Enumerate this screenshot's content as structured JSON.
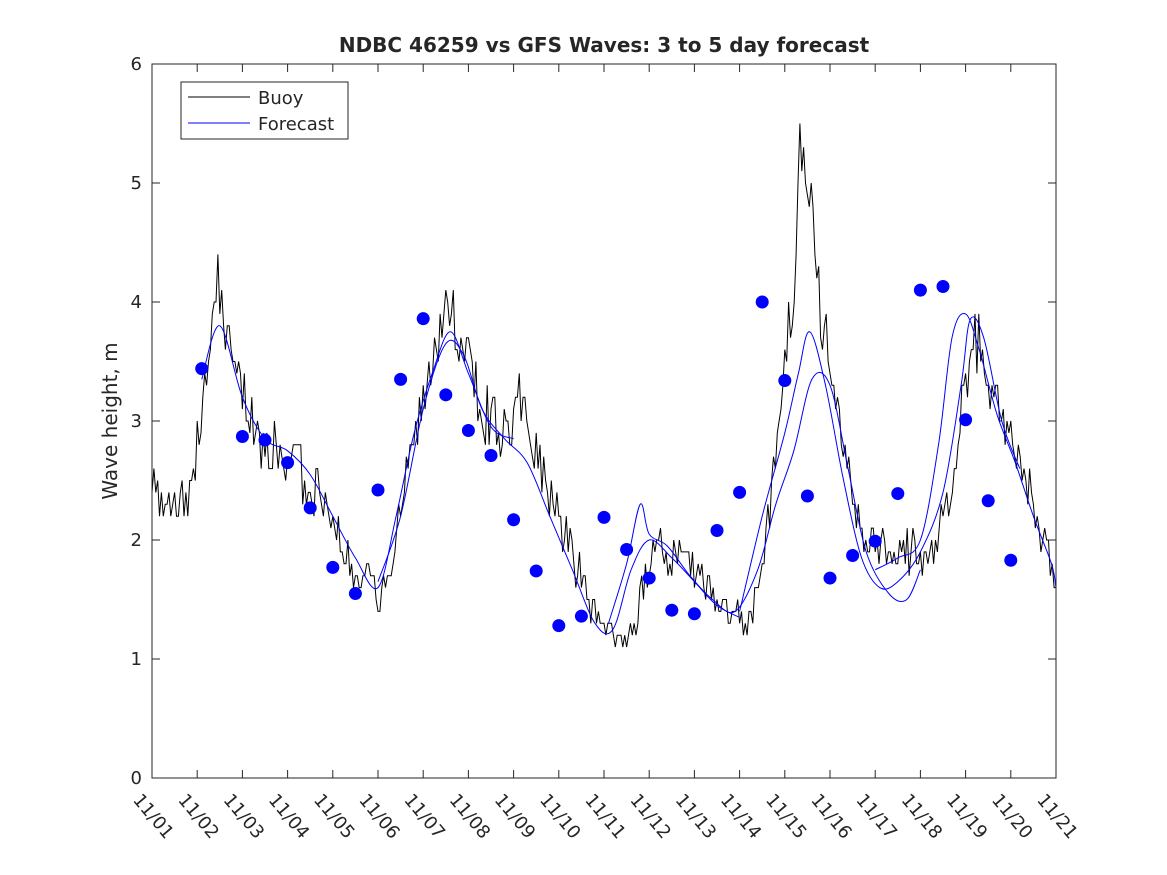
{
  "chart_data": {
    "type": "line",
    "title": "NDBC 46259 vs GFS Waves: 3 to 5 day forecast",
    "xlabel": "",
    "ylabel": "Wave height, m",
    "x_unit": "days since 11/01",
    "xlim": [
      0,
      20
    ],
    "ylim": [
      0,
      6
    ],
    "x_ticks": [
      0,
      1,
      2,
      3,
      4,
      5,
      6,
      7,
      8,
      9,
      10,
      11,
      12,
      13,
      14,
      15,
      16,
      17,
      18,
      19,
      20
    ],
    "x_tick_labels": [
      "11/01",
      "11/02",
      "11/03",
      "11/04",
      "11/05",
      "11/06",
      "11/07",
      "11/08",
      "11/09",
      "11/10",
      "11/11",
      "11/12",
      "11/13",
      "11/14",
      "11/15",
      "11/16",
      "11/17",
      "11/18",
      "11/19",
      "11/20",
      "11/21"
    ],
    "y_ticks": [
      0,
      1,
      2,
      3,
      4,
      5,
      6
    ],
    "y_tick_labels": [
      "0",
      "1",
      "2",
      "3",
      "4",
      "5",
      "6"
    ],
    "legend": {
      "position": "top-left",
      "entries": [
        {
          "label": "Buoy",
          "color": "#000000"
        },
        {
          "label": "Forecast",
          "color": "#0000ff"
        }
      ]
    },
    "colors": {
      "buoy": "#000000",
      "forecast": "#0000ff",
      "markers": "#0000ff",
      "axes": "#262626"
    },
    "series": [
      {
        "name": "Buoy",
        "color": "#000000",
        "keypoints": [
          [
            0.0,
            2.5
          ],
          [
            0.2,
            2.3
          ],
          [
            0.4,
            2.2
          ],
          [
            0.6,
            2.4
          ],
          [
            0.8,
            2.4
          ],
          [
            1.0,
            2.8
          ],
          [
            1.1,
            3.1
          ],
          [
            1.3,
            3.6
          ],
          [
            1.45,
            4.2
          ],
          [
            1.55,
            3.9
          ],
          [
            1.7,
            3.6
          ],
          [
            1.9,
            3.4
          ],
          [
            2.1,
            3.1
          ],
          [
            2.3,
            2.9
          ],
          [
            2.5,
            2.75
          ],
          [
            2.7,
            2.8
          ],
          [
            2.9,
            2.7
          ],
          [
            3.1,
            2.7
          ],
          [
            3.3,
            2.6
          ],
          [
            3.5,
            2.5
          ],
          [
            3.7,
            2.4
          ],
          [
            3.9,
            2.25
          ],
          [
            4.1,
            2.1
          ],
          [
            4.3,
            1.9
          ],
          [
            4.5,
            1.8
          ],
          [
            4.7,
            1.65
          ],
          [
            4.9,
            1.6
          ],
          [
            5.05,
            1.5
          ],
          [
            5.2,
            1.7
          ],
          [
            5.4,
            2.1
          ],
          [
            5.6,
            2.5
          ],
          [
            5.8,
            2.8
          ],
          [
            6.0,
            3.2
          ],
          [
            6.2,
            3.6
          ],
          [
            6.4,
            3.9
          ],
          [
            6.55,
            4.1
          ],
          [
            6.7,
            3.8
          ],
          [
            6.9,
            3.6
          ],
          [
            7.1,
            3.4
          ],
          [
            7.3,
            3.1
          ],
          [
            7.5,
            3.0
          ],
          [
            7.7,
            2.9
          ],
          [
            7.9,
            2.95
          ],
          [
            8.1,
            3.2
          ],
          [
            8.3,
            2.9
          ],
          [
            8.5,
            2.7
          ],
          [
            8.7,
            2.5
          ],
          [
            8.9,
            2.3
          ],
          [
            9.1,
            2.1
          ],
          [
            9.3,
            1.9
          ],
          [
            9.5,
            1.7
          ],
          [
            9.7,
            1.5
          ],
          [
            9.9,
            1.3
          ],
          [
            10.1,
            1.25
          ],
          [
            10.3,
            1.15
          ],
          [
            10.5,
            1.1
          ],
          [
            10.7,
            1.3
          ],
          [
            10.9,
            1.7
          ],
          [
            11.1,
            1.95
          ],
          [
            11.3,
            1.9
          ],
          [
            11.5,
            1.9
          ],
          [
            11.7,
            1.9
          ],
          [
            11.9,
            1.8
          ],
          [
            12.1,
            1.7
          ],
          [
            12.3,
            1.6
          ],
          [
            12.5,
            1.5
          ],
          [
            12.7,
            1.4
          ],
          [
            12.9,
            1.35
          ],
          [
            13.1,
            1.3
          ],
          [
            13.3,
            1.4
          ],
          [
            13.5,
            1.9
          ],
          [
            13.7,
            2.4
          ],
          [
            13.9,
            3.0
          ],
          [
            14.1,
            3.8
          ],
          [
            14.2,
            4.3
          ],
          [
            14.35,
            5.2
          ],
          [
            14.45,
            5.5
          ],
          [
            14.6,
            4.8
          ],
          [
            14.8,
            4.0
          ],
          [
            15.0,
            3.3
          ],
          [
            15.2,
            3.0
          ],
          [
            15.4,
            2.6
          ],
          [
            15.6,
            2.2
          ],
          [
            15.8,
            2.0
          ],
          [
            16.0,
            1.9
          ],
          [
            16.3,
            1.85
          ],
          [
            16.6,
            1.85
          ],
          [
            16.9,
            1.9
          ],
          [
            17.1,
            1.9
          ],
          [
            17.3,
            1.95
          ],
          [
            17.5,
            2.1
          ],
          [
            17.7,
            2.5
          ],
          [
            17.9,
            3.0
          ],
          [
            18.1,
            3.5
          ],
          [
            18.3,
            3.7
          ],
          [
            18.5,
            3.5
          ],
          [
            18.7,
            3.1
          ],
          [
            18.9,
            2.8
          ],
          [
            19.1,
            2.7
          ],
          [
            19.3,
            2.6
          ],
          [
            19.5,
            2.3
          ],
          [
            19.7,
            2.0
          ],
          [
            19.9,
            1.85
          ],
          [
            20.0,
            1.7
          ]
        ]
      },
      {
        "name": "Forecast",
        "color": "#0000ff",
        "runs": [
          [
            [
              1.1,
              3.35
            ],
            [
              1.5,
              3.8
            ],
            [
              2.0,
              3.2
            ],
            [
              2.5,
              2.85
            ],
            [
              3.0,
              2.75
            ],
            [
              3.5,
              2.55
            ],
            [
              4.0,
              2.2
            ],
            [
              4.5,
              1.85
            ],
            [
              5.0,
              1.6
            ],
            [
              5.4,
              2.2
            ],
            [
              5.8,
              2.9
            ],
            [
              6.2,
              3.4
            ],
            [
              6.6,
              3.75
            ],
            [
              7.0,
              3.4
            ],
            [
              7.5,
              2.95
            ],
            [
              8.0,
              2.85
            ]
          ],
          [
            [
              5.0,
              1.65
            ],
            [
              5.5,
              2.2
            ],
            [
              6.0,
              3.1
            ],
            [
              6.5,
              3.65
            ],
            [
              6.9,
              3.55
            ],
            [
              7.3,
              3.1
            ],
            [
              7.8,
              2.85
            ],
            [
              8.3,
              2.65
            ],
            [
              8.8,
              2.2
            ],
            [
              9.3,
              1.75
            ],
            [
              9.8,
              1.3
            ],
            [
              10.2,
              1.25
            ],
            [
              10.6,
              1.75
            ],
            [
              11.0,
              2.0
            ],
            [
              11.5,
              1.85
            ],
            [
              12.0,
              1.65
            ],
            [
              12.5,
              1.45
            ],
            [
              13.0,
              1.35
            ]
          ],
          [
            [
              10.1,
              1.3
            ],
            [
              10.5,
              1.8
            ],
            [
              10.8,
              2.3
            ],
            [
              11.0,
              2.05
            ],
            [
              11.4,
              1.95
            ],
            [
              11.9,
              1.7
            ],
            [
              12.4,
              1.5
            ],
            [
              12.9,
              1.4
            ],
            [
              13.4,
              1.75
            ],
            [
              13.8,
              2.3
            ],
            [
              14.2,
              2.75
            ],
            [
              14.6,
              3.35
            ],
            [
              15.0,
              3.3
            ],
            [
              15.4,
              2.6
            ],
            [
              15.8,
              1.9
            ],
            [
              16.3,
              1.55
            ],
            [
              16.7,
              1.5
            ],
            [
              17.0,
              1.75
            ]
          ],
          [
            [
              13.0,
              1.4
            ],
            [
              13.5,
              2.2
            ],
            [
              14.0,
              2.9
            ],
            [
              14.3,
              3.4
            ],
            [
              14.55,
              3.75
            ],
            [
              14.9,
              3.3
            ],
            [
              15.3,
              2.5
            ],
            [
              15.7,
              1.85
            ],
            [
              16.1,
              1.6
            ],
            [
              16.5,
              1.65
            ],
            [
              17.0,
              1.9
            ],
            [
              17.5,
              2.4
            ],
            [
              17.9,
              3.3
            ],
            [
              18.1,
              3.85
            ],
            [
              18.4,
              3.7
            ],
            [
              18.8,
              3.0
            ],
            [
              19.2,
              2.6
            ]
          ],
          [
            [
              16.0,
              1.75
            ],
            [
              16.5,
              1.85
            ],
            [
              17.0,
              2.0
            ],
            [
              17.4,
              2.8
            ],
            [
              17.7,
              3.7
            ],
            [
              18.0,
              3.9
            ],
            [
              18.3,
              3.6
            ],
            [
              18.7,
              3.05
            ],
            [
              19.1,
              2.65
            ],
            [
              19.5,
              2.2
            ],
            [
              19.9,
              1.8
            ],
            [
              20.0,
              1.6
            ]
          ]
        ]
      }
    ],
    "forecast_markers": [
      [
        1.1,
        3.44
      ],
      [
        2.0,
        2.87
      ],
      [
        2.5,
        2.84
      ],
      [
        3.0,
        2.65
      ],
      [
        3.5,
        2.27
      ],
      [
        4.0,
        1.77
      ],
      [
        4.5,
        1.55
      ],
      [
        5.0,
        2.42
      ],
      [
        5.5,
        3.35
      ],
      [
        6.0,
        3.86
      ],
      [
        6.5,
        3.22
      ],
      [
        7.0,
        2.92
      ],
      [
        7.5,
        2.71
      ],
      [
        8.0,
        2.17
      ],
      [
        8.5,
        1.74
      ],
      [
        9.0,
        1.28
      ],
      [
        9.5,
        1.36
      ],
      [
        10.0,
        2.19
      ],
      [
        10.5,
        1.92
      ],
      [
        11.0,
        1.68
      ],
      [
        11.5,
        1.41
      ],
      [
        12.0,
        1.38
      ],
      [
        12.5,
        2.08
      ],
      [
        13.0,
        2.4
      ],
      [
        13.5,
        4.0
      ],
      [
        14.0,
        3.34
      ],
      [
        14.5,
        2.37
      ],
      [
        15.0,
        1.68
      ],
      [
        15.5,
        1.87
      ],
      [
        16.0,
        1.99
      ],
      [
        16.5,
        2.39
      ],
      [
        17.0,
        4.1
      ],
      [
        17.5,
        4.13
      ],
      [
        18.0,
        3.01
      ],
      [
        18.5,
        2.33
      ],
      [
        19.0,
        1.83
      ]
    ]
  }
}
